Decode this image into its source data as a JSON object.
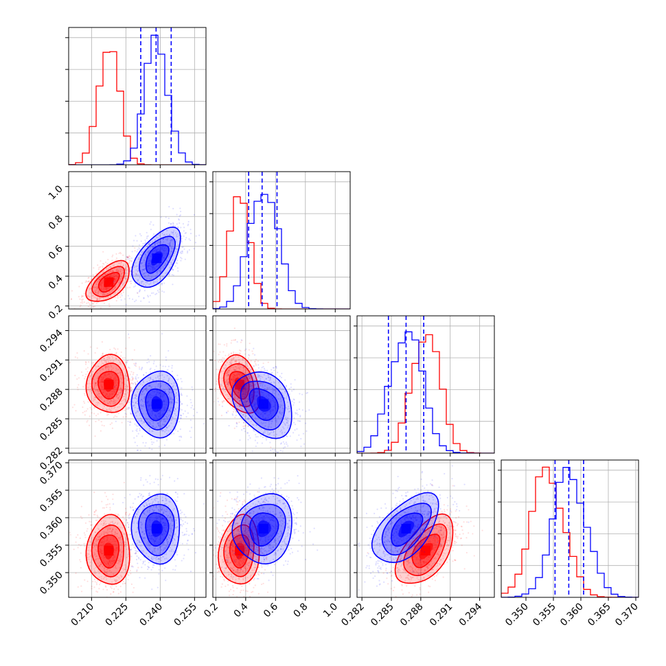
{
  "chart_data": {
    "type": "corner",
    "parameters": [
      {
        "range": [
          0.2,
          0.26
        ],
        "ticks": [
          0.21,
          0.225,
          0.24,
          0.255
        ],
        "tick_labels": [
          "0.210",
          "0.225",
          "0.240",
          "0.255"
        ]
      },
      {
        "range": [
          0.18,
          1.1
        ],
        "ticks": [
          0.2,
          0.4,
          0.6,
          0.8,
          1.0
        ],
        "tick_labels": [
          "0.2",
          "0.4",
          "0.6",
          "0.8",
          "1.0"
        ]
      },
      {
        "range": [
          0.2815,
          0.2955
        ],
        "ticks": [
          0.282,
          0.285,
          0.288,
          0.291,
          0.294
        ],
        "tick_labels": [
          "0.282",
          "0.285",
          "0.288",
          "0.291",
          "0.294"
        ]
      },
      {
        "range": [
          0.3455,
          0.3705
        ],
        "ticks": [
          0.35,
          0.355,
          0.36,
          0.365,
          0.37
        ],
        "tick_labels": [
          "0.350",
          "0.355",
          "0.360",
          "0.365",
          "0.370"
        ]
      }
    ],
    "series": [
      {
        "color": "#ff0000",
        "mean": [
          0.2175,
          0.36,
          0.2885,
          0.354
        ],
        "sd": [
          0.0045,
          0.065,
          0.0014,
          0.003
        ]
      },
      {
        "color": "#0000ff",
        "mean": [
          0.2385,
          0.52,
          0.2865,
          0.358
        ],
        "sd": [
          0.005,
          0.095,
          0.0016,
          0.003
        ]
      }
    ],
    "correlations": {
      "0-1": 0.55,
      "0-2": 0.0,
      "0-3": 0.0,
      "1-2": -0.3,
      "1-3": 0.1,
      "2-3": 0.55
    },
    "quantiles_blue": [
      [
        0.2315,
        0.2382,
        0.2448
      ],
      [
        0.42,
        0.51,
        0.61
      ],
      [
        0.2847,
        0.2865,
        0.2883
      ],
      [
        0.3553,
        0.3578,
        0.3605
      ]
    ],
    "grid": true
  }
}
